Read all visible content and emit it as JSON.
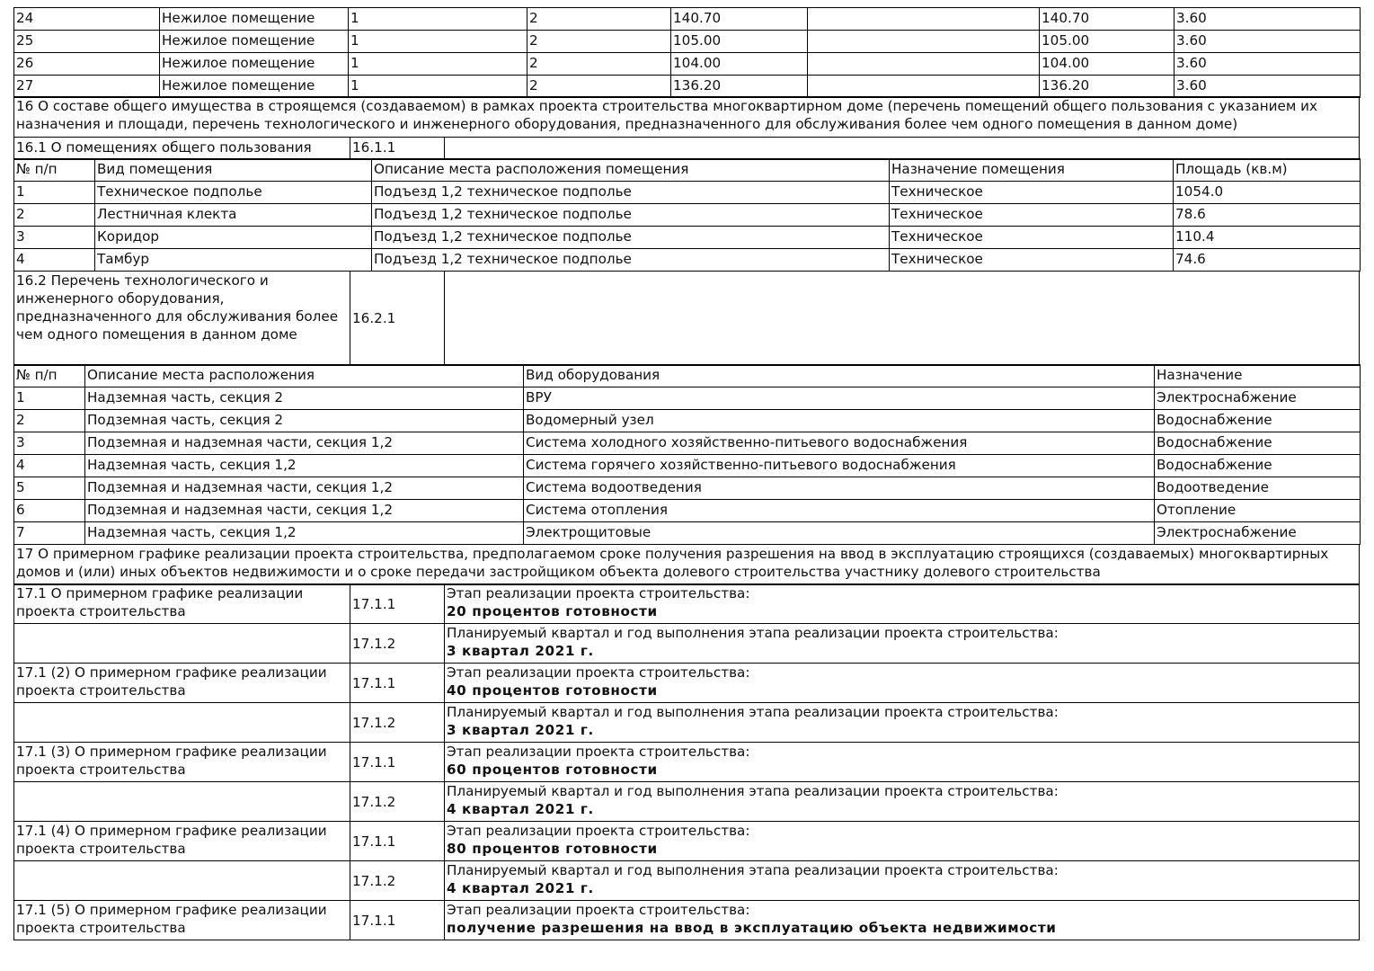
{
  "units_table": {
    "rows": [
      [
        "24",
        "Нежилое помещение",
        "1",
        "2",
        "140.70",
        "",
        "140.70",
        "3.60"
      ],
      [
        "25",
        "Нежилое помещение",
        "1",
        "2",
        "105.00",
        "",
        "105.00",
        "3.60"
      ],
      [
        "26",
        "Нежилое помещение",
        "1",
        "2",
        "104.00",
        "",
        "104.00",
        "3.60"
      ],
      [
        "27",
        "Нежилое помещение",
        "1",
        "2",
        "136.20",
        "",
        "136.20",
        "3.60"
      ]
    ]
  },
  "s16": {
    "title": "16 О составе общего имущества в строящемся (создаваемом) в рамках проекта строительства многоквартирном доме (перечень помещений общего пользования с указанием их назначения и площади, перечень технологического и инженерного оборудования, предназначенного для обслуживания более чем одного помещения в данном доме)",
    "s161_label": "16.1 О помещениях общего пользования",
    "s161_code": "16.1.1",
    "rooms_header": [
      "№ п/п",
      "Вид помещения",
      "Описание места расположения помещения",
      "Назначение помещения",
      "Площадь (кв.м)"
    ],
    "rooms": [
      [
        "1",
        "Техническое подполье",
        "Подъезд 1,2 техническое подполье",
        "Техническое",
        "1054.0"
      ],
      [
        "2",
        "Лестничная клекта",
        "Подъезд 1,2 техническое подполье",
        "Техническое",
        "78.6"
      ],
      [
        "3",
        "Коридор",
        "Подъезд 1,2 техническое подполье",
        "Техническое",
        "110.4"
      ],
      [
        "4",
        "Тамбур",
        "Подъезд 1,2 техническое подполье",
        "Техническое",
        "74.6"
      ]
    ],
    "s162_label": "16.2 Перечень технологического и инженерного оборудования, предназначенного для обслуживания более чем одного помещения в данном доме",
    "s162_code": "16.2.1",
    "equip_header": [
      "№ п/п",
      "Описание места расположения",
      "Вид оборудования",
      "Назначение"
    ],
    "equip": [
      [
        "1",
        "Надземная часть, секция 2",
        "ВРУ",
        "Электроснабжение"
      ],
      [
        "2",
        "Подземная часть, секция 2",
        "Водомерный узел",
        "Водоснабжение"
      ],
      [
        "3",
        "Подземная и надземная части, секция 1,2",
        "Система холодного хозяйственно-питьевого водоснабжения",
        "Водоснабжение"
      ],
      [
        "4",
        "Надземная часть, секция 1,2",
        "Система горячего хозяйственно-питьевого водоснабжения",
        "Водоснабжение"
      ],
      [
        "5",
        "Подземная и надземная части, секция 1,2",
        "Система водоотведения",
        "Водоотведение"
      ],
      [
        "6",
        "Подземная и надземная части, секция 1,2",
        "Система отопления",
        "Отопление"
      ],
      [
        "7",
        "Надземная часть, секция 1,2",
        "Электрощитовые",
        "Электроснабжение"
      ]
    ]
  },
  "s17": {
    "title": "17 О примерном графике реализации проекта строительства, предполагаемом сроке получения разрешения на ввод в эксплуатацию строящихся (создаваемых) многоквартирных домов и (или) иных объектов недвижимости и о сроке передачи застройщиком объекта долевого строительства участнику долевого строительства",
    "rows": [
      {
        "label": "17.1 О примерном графике реализации проекта строительства",
        "code": "17.1.1",
        "caption": "Этап реализации проекта строительства:",
        "value": "20 процентов готовности"
      },
      {
        "label": "",
        "code": "17.1.2",
        "caption": "Планируемый квартал и год выполнения этапа реализации проекта строительства:",
        "value": "3 квартал 2021 г."
      },
      {
        "label": "17.1 (2) О примерном графике реализации проекта строительства",
        "code": "17.1.1",
        "caption": "Этап реализации проекта строительства:",
        "value": "40 процентов готовности"
      },
      {
        "label": "",
        "code": "17.1.2",
        "caption": "Планируемый квартал и год выполнения этапа реализации проекта строительства:",
        "value": "3 квартал 2021 г."
      },
      {
        "label": "17.1 (3) О примерном графике реализации проекта строительства",
        "code": "17.1.1",
        "caption": "Этап реализации проекта строительства:",
        "value": "60 процентов готовности"
      },
      {
        "label": "",
        "code": "17.1.2",
        "caption": "Планируемый квартал и год выполнения этапа реализации проекта строительства:",
        "value": "4 квартал 2021 г."
      },
      {
        "label": "17.1 (4) О примерном графике реализации проекта строительства",
        "code": "17.1.1",
        "caption": "Этап реализации проекта строительства:",
        "value": "80 процентов готовности"
      },
      {
        "label": "",
        "code": "17.1.2",
        "caption": "Планируемый квартал и год выполнения этапа реализации проекта строительства:",
        "value": "4 квартал 2021 г."
      },
      {
        "label": "17.1 (5) О примерном графике реализации проекта строительства",
        "code": "17.1.1",
        "caption": "Этап реализации проекта строительства:",
        "value": "получение разрешения на ввод в эксплуатацию объекта недвижимости"
      }
    ]
  }
}
